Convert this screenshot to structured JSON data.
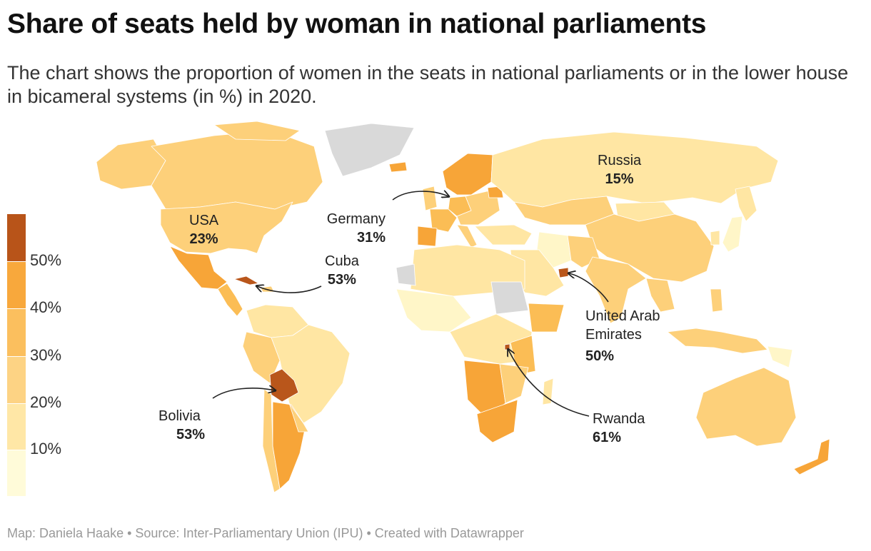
{
  "title": "Share of seats held by woman in national parliaments",
  "subtitle": "The chart shows the proportion of women in the seats in national parliaments or in the lower house in bicameral systems (in %) in 2020.",
  "legend": {
    "labels": [
      "10%",
      "20%",
      "30%",
      "40%",
      "50%"
    ],
    "colors": [
      "#fffbd9",
      "#ffe7a6",
      "#fdd384",
      "#fbbf5e",
      "#f8a83c",
      "#b85419"
    ]
  },
  "colors": {
    "no_data": "#d9d9d9",
    "c5_10": "#fff6c8",
    "c10_20": "#ffe6a3",
    "c20_30": "#fdd07a",
    "c30_40": "#fbbd55",
    "c40_50": "#f7a538",
    "c50p": "#b9561b"
  },
  "annotations": {
    "russia": {
      "name": "Russia",
      "value": "15%"
    },
    "usa": {
      "name": "USA",
      "value": "23%"
    },
    "germany": {
      "name": "Germany",
      "value": "31%"
    },
    "cuba": {
      "name": "Cuba",
      "value": "53%"
    },
    "uae": {
      "name_line1": "United Arab",
      "name_line2": "Emirates",
      "value": "50%"
    },
    "bolivia": {
      "name": "Bolivia",
      "value": "53%"
    },
    "rwanda": {
      "name": "Rwanda",
      "value": "61%"
    }
  },
  "footer": "Map: Daniela Haake • Source: Inter-Parliamentary Union (IPU) • Created with Datawrapper"
}
